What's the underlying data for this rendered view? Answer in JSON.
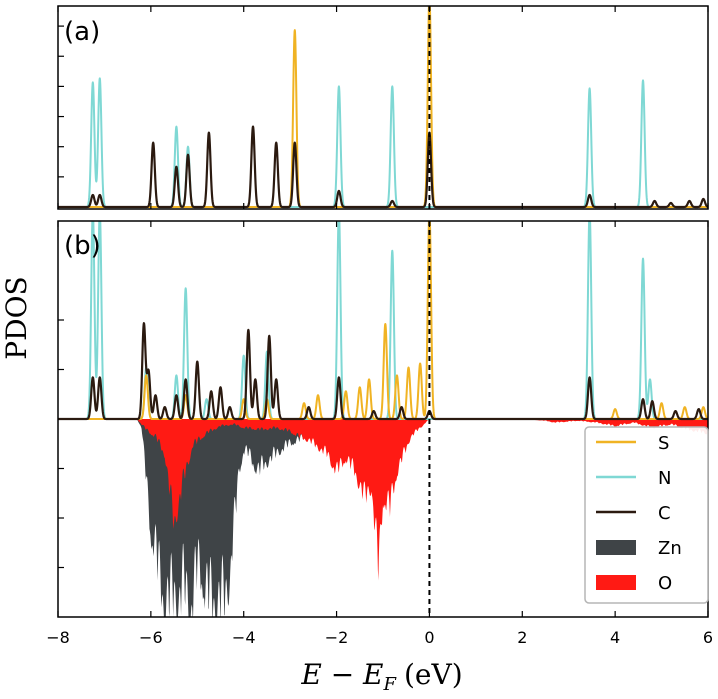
{
  "chart_data": {
    "type": "line",
    "xlabel": "E − E",
    "xlabel_sub": "F",
    "xlabel_unit": "(eV)",
    "ylabel": "PDOS",
    "xlim": [
      -8,
      6
    ],
    "x_ticks": [
      -8,
      -6,
      -4,
      -2,
      0,
      2,
      4,
      6
    ],
    "x_tick_labels": [
      "−8",
      "−6",
      "−4",
      "−2",
      "0",
      "2",
      "4",
      "6"
    ],
    "fermi_level": 0,
    "colors": {
      "S": "#f0b323",
      "N": "#7fd8d4",
      "C": "#2b1a10",
      "Zn": "#3f4447",
      "O": "#ff1a14"
    },
    "panels": [
      {
        "label": "(a)",
        "ylim": [
          0,
          1.0
        ],
        "y_ticks": [
          0.15,
          0.3,
          0.45,
          0.6,
          0.75,
          0.9
        ],
        "series": [
          {
            "name": "S",
            "peaks": [
              [
                -2.9,
                0.88
              ],
              [
                0.0,
                1.05
              ]
            ]
          },
          {
            "name": "N",
            "peaks": [
              [
                -7.25,
                0.62
              ],
              [
                -7.1,
                0.64
              ],
              [
                -5.45,
                0.4
              ],
              [
                -5.2,
                0.3
              ],
              [
                -1.95,
                0.6
              ],
              [
                -0.8,
                0.6
              ],
              [
                3.45,
                0.59
              ],
              [
                4.6,
                0.63
              ]
            ]
          },
          {
            "name": "C",
            "peaks": [
              [
                -7.25,
                0.06
              ],
              [
                -7.1,
                0.06
              ],
              [
                -5.95,
                0.32
              ],
              [
                -5.45,
                0.2
              ],
              [
                -5.2,
                0.26
              ],
              [
                -4.75,
                0.37
              ],
              [
                -3.8,
                0.4
              ],
              [
                -3.3,
                0.32
              ],
              [
                -2.9,
                0.32
              ],
              [
                -1.95,
                0.08
              ],
              [
                -0.8,
                0.03
              ],
              [
                0.0,
                0.37
              ],
              [
                3.45,
                0.06
              ],
              [
                4.85,
                0.03
              ],
              [
                5.2,
                0.02
              ],
              [
                5.6,
                0.03
              ],
              [
                5.9,
                0.04
              ]
            ]
          }
        ]
      },
      {
        "label": "(b)",
        "ylim": [
          -1.0,
          1.0
        ],
        "y_ticks": [
          -0.75,
          -0.5,
          -0.25,
          0.25,
          0.5
        ],
        "series": [
          {
            "name": "S",
            "peaks": [
              [
                -6.1,
                0.22
              ],
              [
                -5.25,
                0.12
              ],
              [
                -4.0,
                0.1
              ],
              [
                -3.5,
                0.1
              ],
              [
                -2.7,
                0.08
              ],
              [
                -2.4,
                0.12
              ],
              [
                -1.8,
                0.14
              ],
              [
                -1.5,
                0.16
              ],
              [
                -1.3,
                0.2
              ],
              [
                -0.95,
                0.48
              ],
              [
                -0.7,
                0.22
              ],
              [
                -0.45,
                0.26
              ],
              [
                -0.2,
                0.28
              ],
              [
                0.0,
                1.05
              ],
              [
                4.0,
                0.05
              ],
              [
                5.0,
                0.08
              ],
              [
                5.5,
                0.06
              ],
              [
                5.9,
                0.06
              ]
            ]
          },
          {
            "name": "N",
            "peaks": [
              [
                -7.25,
                1.05
              ],
              [
                -7.1,
                1.05
              ],
              [
                -6.1,
                0.26
              ],
              [
                -5.45,
                0.22
              ],
              [
                -5.25,
                0.66
              ],
              [
                -4.8,
                0.1
              ],
              [
                -4.0,
                0.32
              ],
              [
                -3.5,
                0.34
              ],
              [
                -1.95,
                1.05
              ],
              [
                -0.8,
                0.85
              ],
              [
                3.45,
                1.05
              ],
              [
                4.6,
                0.81
              ],
              [
                4.75,
                0.2
              ]
            ]
          },
          {
            "name": "C",
            "peaks": [
              [
                -7.25,
                0.21
              ],
              [
                -7.1,
                0.21
              ],
              [
                -6.15,
                0.48
              ],
              [
                -6.05,
                0.24
              ],
              [
                -5.9,
                0.12
              ],
              [
                -5.7,
                0.06
              ],
              [
                -5.45,
                0.12
              ],
              [
                -5.25,
                0.2
              ],
              [
                -5.0,
                0.29
              ],
              [
                -4.7,
                0.14
              ],
              [
                -4.5,
                0.16
              ],
              [
                -4.3,
                0.06
              ],
              [
                -3.9,
                0.45
              ],
              [
                -3.75,
                0.2
              ],
              [
                -3.45,
                0.42
              ],
              [
                -3.3,
                0.2
              ],
              [
                -2.6,
                0.06
              ],
              [
                -1.95,
                0.21
              ],
              [
                -1.2,
                0.04
              ],
              [
                -0.6,
                0.06
              ],
              [
                0.0,
                0.04
              ],
              [
                3.45,
                0.21
              ],
              [
                4.6,
                0.1
              ],
              [
                4.8,
                0.09
              ],
              [
                5.3,
                0.04
              ],
              [
                5.8,
                0.05
              ]
            ]
          },
          {
            "name": "Zn",
            "envelope": [
              [
                -6.3,
                0
              ],
              [
                -6.2,
                -0.05
              ],
              [
                -6.1,
                -0.35
              ],
              [
                -6.0,
                -0.65
              ],
              [
                -5.9,
                -0.75
              ],
              [
                -5.8,
                -0.95
              ],
              [
                -5.7,
                -1.05
              ],
              [
                -5.6,
                -1.05
              ],
              [
                -5.5,
                -1.0
              ],
              [
                -5.4,
                -1.05
              ],
              [
                -5.3,
                -0.95
              ],
              [
                -5.2,
                -1.05
              ],
              [
                -5.1,
                -1.05
              ],
              [
                -5.0,
                -0.85
              ],
              [
                -4.9,
                -0.9
              ],
              [
                -4.8,
                -1.0
              ],
              [
                -4.7,
                -1.05
              ],
              [
                -4.6,
                -1.05
              ],
              [
                -4.5,
                -1.05
              ],
              [
                -4.4,
                -1.05
              ],
              [
                -4.3,
                -0.9
              ],
              [
                -4.2,
                -0.6
              ],
              [
                -4.1,
                -0.3
              ],
              [
                -4.0,
                -0.18
              ],
              [
                -3.9,
                -0.2
              ],
              [
                -3.7,
                -0.3
              ],
              [
                -3.5,
                -0.25
              ],
              [
                -3.3,
                -0.2
              ],
              [
                -3.0,
                -0.14
              ],
              [
                -2.8,
                -0.12
              ],
              [
                -2.5,
                -0.08
              ],
              [
                -2.2,
                -0.06
              ],
              [
                -2.0,
                -0.05
              ],
              [
                -1.7,
                -0.03
              ],
              [
                -1.4,
                -0.02
              ],
              [
                -1.0,
                -0.01
              ],
              [
                -0.5,
                -0.01
              ],
              [
                0.0,
                0
              ]
            ]
          },
          {
            "name": "O",
            "envelope": [
              [
                -6.3,
                0
              ],
              [
                -6.1,
                -0.06
              ],
              [
                -5.9,
                -0.1
              ],
              [
                -5.7,
                -0.2
              ],
              [
                -5.5,
                -0.6
              ],
              [
                -5.3,
                -0.35
              ],
              [
                -5.1,
                -0.15
              ],
              [
                -4.8,
                -0.08
              ],
              [
                -4.5,
                -0.04
              ],
              [
                -4.2,
                -0.03
              ],
              [
                -4.0,
                -0.05
              ],
              [
                -3.6,
                -0.06
              ],
              [
                -3.3,
                -0.05
              ],
              [
                -3.0,
                -0.07
              ],
              [
                -2.8,
                -0.1
              ],
              [
                -2.6,
                -0.12
              ],
              [
                -2.4,
                -0.16
              ],
              [
                -2.2,
                -0.2
              ],
              [
                -2.0,
                -0.3
              ],
              [
                -1.8,
                -0.22
              ],
              [
                -1.6,
                -0.3
              ],
              [
                -1.4,
                -0.45
              ],
              [
                -1.25,
                -0.38
              ],
              [
                -1.1,
                -0.85
              ],
              [
                -1.0,
                -0.45
              ],
              [
                -0.85,
                -0.5
              ],
              [
                -0.7,
                -0.3
              ],
              [
                -0.55,
                -0.2
              ],
              [
                -0.4,
                -0.1
              ],
              [
                -0.2,
                -0.05
              ],
              [
                0.0,
                0
              ],
              [
                2.0,
                0
              ],
              [
                2.5,
                -0.01
              ],
              [
                2.7,
                -0.02
              ],
              [
                3.2,
                -0.01
              ],
              [
                3.6,
                -0.02
              ],
              [
                4.0,
                -0.04
              ],
              [
                4.4,
                -0.02
              ],
              [
                4.8,
                -0.05
              ],
              [
                5.2,
                -0.03
              ],
              [
                5.6,
                -0.06
              ],
              [
                6.0,
                -0.08
              ]
            ]
          }
        ]
      }
    ],
    "legend": {
      "position": "lower-right",
      "entries": [
        {
          "name": "S",
          "style": "line"
        },
        {
          "name": "N",
          "style": "line"
        },
        {
          "name": "C",
          "style": "line"
        },
        {
          "name": "Zn",
          "style": "patch"
        },
        {
          "name": "O",
          "style": "patch"
        }
      ]
    }
  }
}
